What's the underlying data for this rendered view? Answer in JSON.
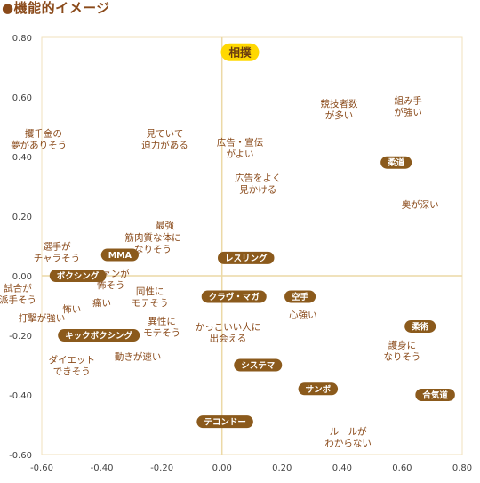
{
  "page": {
    "title": "●機能的イメージ"
  },
  "chart_data": {
    "type": "scatter",
    "title": "",
    "xlabel": "",
    "ylabel": "",
    "xlim": [
      -0.6,
      0.8
    ],
    "ylim": [
      -0.6,
      0.8
    ],
    "grid": false,
    "x_ticks": [
      "-0.60",
      "-0.40",
      "-0.20",
      "0.00",
      "0.20",
      "0.40",
      "0.60",
      "0.80"
    ],
    "y_ticks": [
      "0.80",
      "0.60",
      "0.40",
      "0.20",
      "0.00",
      "-0.20",
      "-0.40",
      "-0.60"
    ],
    "colors": {
      "frame": "#f2e2bc",
      "axis_line": "#ecd9a6",
      "tick_text": "#444444",
      "attribute_text": "#8a4a1a",
      "sport_badge": "#8b5a1c",
      "sport_badge_text": "#ffffff",
      "highlight_badge": "#ffd800",
      "highlight_badge_text": "#6a3c10"
    },
    "sports": [
      {
        "name": "相撲",
        "x": 0.06,
        "y": 0.75,
        "highlight": true
      },
      {
        "name": "柔道",
        "x": 0.58,
        "y": 0.38
      },
      {
        "name": "MMA",
        "x": -0.34,
        "y": 0.07
      },
      {
        "name": "レスリング",
        "x": 0.08,
        "y": 0.06
      },
      {
        "name": "ボクシング",
        "x": -0.48,
        "y": 0.0
      },
      {
        "name": "クラヴ・マガ",
        "x": 0.04,
        "y": -0.07
      },
      {
        "name": "空手",
        "x": 0.26,
        "y": -0.07
      },
      {
        "name": "柔術",
        "x": 0.66,
        "y": -0.17
      },
      {
        "name": "キックボクシング",
        "x": -0.41,
        "y": -0.2
      },
      {
        "name": "システマ",
        "x": 0.12,
        "y": -0.3
      },
      {
        "name": "サンボ",
        "x": 0.32,
        "y": -0.38
      },
      {
        "name": "合気道",
        "x": 0.71,
        "y": -0.4
      },
      {
        "name": "テコンドー",
        "x": 0.01,
        "y": -0.49
      }
    ],
    "attributes": [
      {
        "lines": [
          "組み手",
          "が強い"
        ],
        "x": 0.62,
        "y": 0.57
      },
      {
        "lines": [
          "競技者数",
          "が多い"
        ],
        "x": 0.39,
        "y": 0.56
      },
      {
        "lines": [
          "一攫千金の",
          "夢がありそう"
        ],
        "x": -0.61,
        "y": 0.46
      },
      {
        "lines": [
          "見ていて",
          "迫力がある"
        ],
        "x": -0.19,
        "y": 0.46
      },
      {
        "lines": [
          "広告・宣伝",
          "がよい"
        ],
        "x": 0.06,
        "y": 0.43
      },
      {
        "lines": [
          "広告をよく",
          "見かける"
        ],
        "x": 0.12,
        "y": 0.31
      },
      {
        "lines": [
          "奥が深い"
        ],
        "x": 0.66,
        "y": 0.24
      },
      {
        "lines": [
          "最強"
        ],
        "x": -0.19,
        "y": 0.17
      },
      {
        "lines": [
          "筋肉質な体に",
          "なりそう"
        ],
        "x": -0.23,
        "y": 0.11
      },
      {
        "lines": [
          "選手が",
          "チャラそう"
        ],
        "x": -0.55,
        "y": 0.08
      },
      {
        "lines": [
          "ファンが",
          "怖そう"
        ],
        "x": -0.37,
        "y": -0.01
      },
      {
        "lines": [
          "試合が",
          "派手そう"
        ],
        "x": -0.68,
        "y": -0.06
      },
      {
        "lines": [
          "同性に",
          "モテそう"
        ],
        "x": -0.24,
        "y": -0.07
      },
      {
        "lines": [
          "痛い"
        ],
        "x": -0.4,
        "y": -0.09
      },
      {
        "lines": [
          "怖い"
        ],
        "x": -0.5,
        "y": -0.11
      },
      {
        "lines": [
          "打撃が強い"
        ],
        "x": -0.6,
        "y": -0.14
      },
      {
        "lines": [
          "心強い"
        ],
        "x": 0.27,
        "y": -0.13
      },
      {
        "lines": [
          "異性に",
          "モテそう"
        ],
        "x": -0.2,
        "y": -0.17
      },
      {
        "lines": [
          "かっこいい人に",
          "出会える"
        ],
        "x": 0.02,
        "y": -0.19
      },
      {
        "lines": [
          "護身に",
          "なりそう"
        ],
        "x": 0.6,
        "y": -0.25
      },
      {
        "lines": [
          "ダイエット",
          "できそう"
        ],
        "x": -0.5,
        "y": -0.3
      },
      {
        "lines": [
          "動きが速い"
        ],
        "x": -0.28,
        "y": -0.27
      },
      {
        "lines": [
          "ルールが",
          "わからない"
        ],
        "x": 0.42,
        "y": -0.54
      }
    ]
  }
}
